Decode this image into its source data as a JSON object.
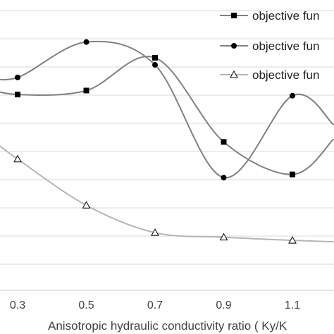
{
  "chart_data": {
    "type": "line",
    "title": "",
    "xlabel": "Anisotropic hydraulic conductivity ratio ( Ky/K",
    "ylabel": "",
    "x": [
      0.3,
      0.5,
      0.7,
      0.9,
      1.1
    ],
    "x_tick_labels": [
      "0.3",
      "0.5",
      "0.7",
      "0.9",
      "1.1"
    ],
    "grid": true,
    "legend_position": "top-right",
    "smooth": true,
    "series": [
      {
        "name": "objective fun",
        "marker": "square",
        "color": "#808080",
        "x": [
          0.2,
          0.3,
          0.5,
          0.7,
          0.9,
          1.1,
          1.22
        ],
        "y": [
          71.2,
          68.6,
          70.0,
          81.5,
          52.0,
          40.6,
          53.0
        ]
      },
      {
        "name": "objective fun",
        "marker": "circle",
        "color": "#808080",
        "x": [
          0.2,
          0.3,
          0.5,
          0.7,
          0.9,
          1.1,
          1.22
        ],
        "y": [
          75.0,
          74.6,
          87.0,
          79.0,
          39.5,
          68.2,
          58.0
        ]
      },
      {
        "name": "objective fun",
        "marker": "triangle",
        "color": "#b4b4b4",
        "x": [
          0.2,
          0.3,
          0.5,
          0.7,
          0.9,
          1.1,
          1.22
        ],
        "y": [
          55.0,
          46.0,
          29.8,
          20.2,
          18.6,
          17.5,
          17.0
        ]
      }
    ]
  }
}
